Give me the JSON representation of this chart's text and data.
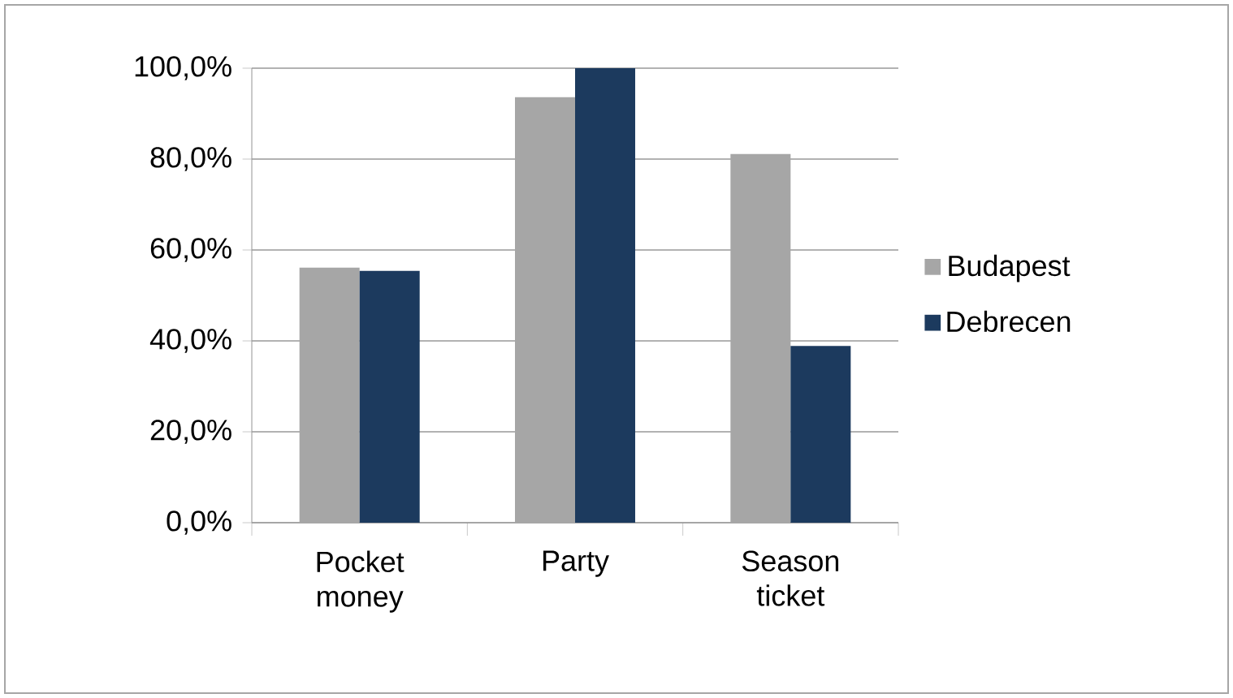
{
  "chart_data": {
    "type": "bar",
    "categories": [
      "Pocket money",
      "Party",
      "Season ticket"
    ],
    "series": [
      {
        "name": "Budapest",
        "color": "#a6a6a6",
        "values": [
          56.1,
          93.6,
          81.1
        ]
      },
      {
        "name": "Debrecen",
        "color": "#1c3a5e",
        "values": [
          55.4,
          100,
          38.9
        ]
      }
    ],
    "ylim": [
      0,
      100
    ],
    "yticks": [
      {
        "value": 0,
        "label": "0,0%"
      },
      {
        "value": 20,
        "label": "20,0%"
      },
      {
        "value": 40,
        "label": "40,0%"
      },
      {
        "value": 60,
        "label": "60,0%"
      },
      {
        "value": 80,
        "label": "80,0%"
      },
      {
        "value": 100,
        "label": "100,0%"
      }
    ],
    "grid": "y",
    "legend": "right"
  }
}
